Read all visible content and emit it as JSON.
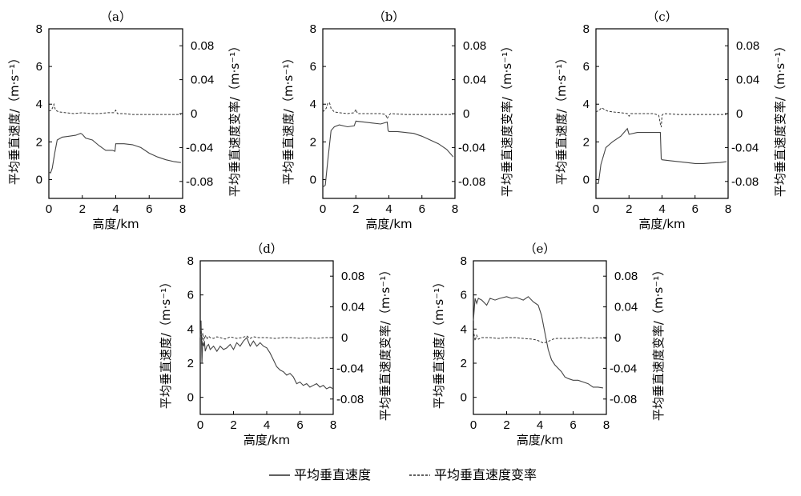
{
  "chart_data": [
    {
      "type": "line",
      "panel": "a",
      "title": "（a）",
      "xlabel": "高度/km",
      "ylabel_left": "平均垂直速度/（m·s⁻¹）",
      "ylabel_right": "平均垂直速度变率/（m·s⁻¹）",
      "xlim": [
        0,
        8
      ],
      "ylim_left": [
        -1,
        8
      ],
      "ylim_right": [
        -0.1,
        0.1
      ],
      "xticks": [
        "0",
        "2",
        "4",
        "6",
        "8"
      ],
      "yticks_left": [
        "0",
        "2",
        "4",
        "6",
        "8"
      ],
      "yticks_right": [
        "-0.08",
        "-0.04",
        "0",
        "0.04",
        "0.08"
      ],
      "series": [
        {
          "name": "平均垂直速度",
          "style": "solid",
          "x": [
            0,
            0.1,
            0.2,
            0.35,
            0.5,
            0.8,
            1.2,
            1.6,
            1.9,
            2.0,
            2.2,
            2.6,
            3.0,
            3.4,
            3.8,
            3.95,
            4.0,
            4.5,
            5.0,
            5.5,
            6.0,
            6.5,
            7.0,
            7.5,
            7.9
          ],
          "y": [
            0.4,
            0.35,
            0.6,
            1.4,
            2.1,
            2.25,
            2.3,
            2.35,
            2.45,
            2.4,
            2.2,
            2.1,
            1.8,
            1.55,
            1.55,
            1.5,
            1.9,
            1.9,
            1.85,
            1.7,
            1.4,
            1.2,
            1.05,
            0.95,
            0.9
          ]
        },
        {
          "name": "平均垂直速度变率",
          "style": "dashed",
          "x": [
            0,
            0.15,
            0.25,
            0.3,
            0.4,
            0.6,
            1.0,
            1.5,
            2.0,
            2.5,
            3.0,
            3.5,
            3.9,
            4.0,
            4.1,
            4.5,
            5.0,
            6.0,
            7.0,
            7.9
          ],
          "y": [
            0.003,
            0.004,
            0.008,
            0.011,
            0.004,
            0.002,
            0.001,
            0.0,
            0.001,
            0.0,
            0.0,
            0.001,
            0.001,
            0.004,
            0.0,
            0.0,
            -0.001,
            -0.001,
            -0.001,
            -0.001
          ]
        }
      ]
    },
    {
      "type": "line",
      "panel": "b",
      "title": "（b）",
      "xlabel": "高度/km",
      "ylabel_left": "平均垂直速度/（m·s⁻¹）",
      "ylabel_right": "平均垂直速度变率/（m·s⁻¹）",
      "xlim": [
        0,
        8
      ],
      "ylim_left": [
        -1,
        8
      ],
      "ylim_right": [
        -0.1,
        0.1
      ],
      "xticks": [
        "0",
        "2",
        "4",
        "6",
        "8"
      ],
      "yticks_left": [
        "0",
        "2",
        "4",
        "6",
        "8"
      ],
      "yticks_right": [
        "-0.08",
        "-0.04",
        "0",
        "0.04",
        "0.08"
      ],
      "series": [
        {
          "name": "平均垂直速度",
          "style": "solid",
          "x": [
            0,
            0.15,
            0.3,
            0.5,
            0.7,
            1.0,
            1.5,
            1.9,
            2.0,
            2.5,
            3.0,
            3.5,
            3.9,
            3.95,
            4.0,
            4.5,
            5.0,
            5.5,
            6.0,
            6.5,
            7.0,
            7.5,
            7.9
          ],
          "y": [
            -0.4,
            -0.3,
            1.0,
            2.6,
            2.8,
            2.9,
            2.8,
            2.85,
            3.1,
            3.05,
            3.0,
            2.95,
            3.05,
            2.6,
            2.55,
            2.55,
            2.5,
            2.45,
            2.3,
            2.1,
            1.9,
            1.6,
            1.2
          ]
        },
        {
          "name": "平均垂直速度变率",
          "style": "dashed",
          "x": [
            0,
            0.2,
            0.3,
            0.4,
            0.5,
            0.7,
            1.0,
            1.5,
            1.9,
            2.0,
            2.1,
            2.5,
            3.0,
            3.5,
            3.8,
            3.9,
            4.0,
            4.1,
            5.0,
            6.0,
            7.0,
            7.9
          ],
          "y": [
            0.002,
            0.006,
            0.012,
            0.013,
            0.006,
            0.002,
            0.001,
            0.0,
            0.001,
            0.005,
            0.0,
            0.0,
            0.0,
            0.0,
            -0.001,
            -0.006,
            -0.002,
            0.0,
            -0.001,
            -0.001,
            -0.001,
            -0.001
          ]
        }
      ]
    },
    {
      "type": "line",
      "panel": "c",
      "title": "（c）",
      "xlabel": "高度/km",
      "ylabel_left": "平均垂直速度/（m·s⁻¹）",
      "ylabel_right": "平均垂直速度变率/（m·s⁻¹）",
      "xlim": [
        0,
        8
      ],
      "ylim_left": [
        -1,
        8
      ],
      "ylim_right": [
        -0.1,
        0.1
      ],
      "xticks": [
        "0",
        "2",
        "4",
        "6",
        "8"
      ],
      "yticks_left": [
        "0",
        "2",
        "4",
        "6",
        "8"
      ],
      "yticks_right": [
        "-0.08",
        "-0.04",
        "0",
        "0.04",
        "0.08"
      ],
      "series": [
        {
          "name": "平均垂直速度",
          "style": "solid",
          "x": [
            0,
            0.15,
            0.3,
            0.6,
            1.0,
            1.5,
            1.9,
            2.0,
            2.5,
            3.0,
            3.5,
            3.9,
            3.95,
            4.0,
            4.5,
            5.0,
            5.5,
            6.0,
            6.5,
            7.0,
            7.5,
            7.9
          ],
          "y": [
            -0.2,
            -0.2,
            0.8,
            1.7,
            2.0,
            2.3,
            2.7,
            2.4,
            2.5,
            2.5,
            2.5,
            2.5,
            1.1,
            1.05,
            1.0,
            0.95,
            0.9,
            0.85,
            0.85,
            0.88,
            0.9,
            0.95
          ]
        },
        {
          "name": "平均垂直速度变率",
          "style": "dashed",
          "x": [
            0,
            0.2,
            0.35,
            0.5,
            0.7,
            1.0,
            1.5,
            1.9,
            2.0,
            2.1,
            2.5,
            3.0,
            3.5,
            3.8,
            3.9,
            3.95,
            4.0,
            4.1,
            5.0,
            6.0,
            7.0,
            7.9
          ],
          "y": [
            0.002,
            0.004,
            0.007,
            0.005,
            0.003,
            0.002,
            0.001,
            0.0,
            -0.003,
            0.0,
            0.0,
            0.0,
            0.0,
            -0.002,
            -0.012,
            -0.016,
            -0.002,
            0.0,
            -0.001,
            -0.001,
            -0.001,
            -0.001
          ]
        }
      ]
    },
    {
      "type": "line",
      "panel": "d",
      "title": "（d）",
      "xlabel": "高度/km",
      "ylabel_left": "平均垂直速度/（m·s⁻¹）",
      "ylabel_right": "平均垂直速度变率/（m·s⁻¹）",
      "xlim": [
        0,
        8
      ],
      "ylim_left": [
        -1,
        8
      ],
      "ylim_right": [
        -0.1,
        0.1
      ],
      "xticks": [
        "0",
        "2",
        "4",
        "6",
        "8"
      ],
      "yticks_left": [
        "0",
        "2",
        "4",
        "6",
        "8"
      ],
      "yticks_right": [
        "-0.08",
        "-0.04",
        "0",
        "0.04",
        "0.08"
      ],
      "series": [
        {
          "name": "平均垂直速度",
          "style": "solid",
          "x": [
            0,
            0.05,
            0.1,
            0.15,
            0.2,
            0.25,
            0.3,
            0.4,
            0.5,
            0.6,
            0.8,
            1.0,
            1.2,
            1.4,
            1.6,
            1.8,
            2.0,
            2.2,
            2.4,
            2.6,
            2.8,
            3.0,
            3.2,
            3.4,
            3.6,
            3.8,
            4.0,
            4.2,
            4.4,
            4.6,
            4.8,
            5.0,
            5.2,
            5.4,
            5.6,
            5.8,
            6.0,
            6.2,
            6.4,
            6.6,
            6.8,
            7.0,
            7.2,
            7.4,
            7.6,
            7.8,
            8.0
          ],
          "y": [
            3.5,
            4.5,
            2.0,
            3.2,
            3.0,
            3.3,
            2.7,
            3.0,
            3.1,
            2.8,
            3.0,
            2.7,
            3.0,
            2.8,
            2.9,
            3.1,
            2.8,
            3.2,
            3.0,
            3.3,
            3.5,
            3.0,
            3.3,
            3.0,
            3.2,
            3.0,
            2.9,
            2.6,
            2.2,
            1.8,
            1.6,
            1.5,
            1.3,
            1.4,
            1.2,
            0.8,
            0.9,
            0.7,
            0.8,
            0.6,
            0.7,
            0.8,
            0.6,
            0.7,
            0.5,
            0.6,
            0.5
          ]
        },
        {
          "name": "平均垂直速度变率",
          "style": "dashed",
          "x": [
            0,
            0.05,
            0.1,
            0.15,
            0.2,
            0.3,
            0.4,
            0.5,
            0.6,
            0.8,
            1.0,
            1.2,
            1.5,
            1.8,
            2.0,
            2.2,
            2.5,
            2.8,
            3.0,
            3.2,
            3.5,
            4.0,
            4.5,
            5.0,
            5.5,
            6.0,
            6.5,
            7.0,
            7.5,
            8.0
          ],
          "y": [
            0.0,
            0.012,
            -0.01,
            0.006,
            -0.004,
            0.003,
            -0.002,
            0.002,
            0.0,
            -0.001,
            0.001,
            0.0,
            -0.002,
            0.001,
            0.0,
            -0.001,
            0.0,
            0.002,
            -0.001,
            0.001,
            0.0,
            0.0,
            -0.001,
            0.0,
            0.0,
            -0.001,
            0.0,
            -0.001,
            0.0,
            0.0
          ]
        }
      ]
    },
    {
      "type": "line",
      "panel": "e",
      "title": "（e）",
      "xlabel": "高度/km",
      "ylabel_left": "平均垂直速度/（m·s⁻¹）",
      "ylabel_right": "平均垂直速度变率/（m·s⁻¹）",
      "xlim": [
        0,
        8
      ],
      "ylim_left": [
        -1,
        8
      ],
      "ylim_right": [
        -0.1,
        0.1
      ],
      "xticks": [
        "0",
        "2",
        "4",
        "6",
        "8"
      ],
      "yticks_left": [
        "0",
        "2",
        "4",
        "6",
        "8"
      ],
      "yticks_right": [
        "-0.08",
        "-0.04",
        "0",
        "0.04",
        "0.08"
      ],
      "series": [
        {
          "name": "平均垂直速度",
          "style": "solid",
          "x": [
            0,
            0.1,
            0.2,
            0.3,
            0.5,
            0.8,
            1.0,
            1.3,
            1.6,
            2.0,
            2.3,
            2.6,
            3.0,
            3.3,
            3.6,
            3.9,
            4.1,
            4.3,
            4.5,
            4.7,
            4.9,
            5.1,
            5.3,
            5.5,
            5.7,
            6.0,
            6.3,
            6.6,
            6.9,
            7.2,
            7.5,
            7.8
          ],
          "y": [
            4.5,
            5.8,
            5.5,
            5.8,
            5.7,
            5.4,
            5.8,
            5.7,
            5.8,
            5.9,
            5.8,
            5.85,
            5.7,
            5.9,
            5.6,
            5.4,
            4.8,
            3.8,
            2.8,
            2.2,
            1.9,
            1.7,
            1.5,
            1.2,
            1.1,
            1.0,
            1.0,
            0.9,
            0.8,
            0.6,
            0.6,
            0.55
          ]
        },
        {
          "name": "平均垂直速度变率",
          "style": "dashed",
          "x": [
            0,
            0.1,
            0.2,
            0.3,
            0.5,
            0.8,
            1.0,
            1.5,
            2.0,
            2.5,
            3.0,
            3.5,
            3.8,
            4.0,
            4.2,
            4.4,
            4.6,
            4.8,
            5.0,
            5.5,
            6.0,
            6.5,
            7.0,
            7.5,
            8.0
          ],
          "y": [
            0.01,
            -0.004,
            0.003,
            -0.002,
            0.0,
            0.0,
            0.0,
            -0.001,
            0.0,
            0.0,
            -0.001,
            -0.002,
            -0.003,
            -0.005,
            -0.007,
            -0.006,
            -0.004,
            -0.002,
            -0.001,
            -0.001,
            -0.001,
            0.0,
            -0.001,
            0.0,
            -0.001
          ]
        }
      ]
    }
  ],
  "legend": {
    "solid_label": "平均垂直速度",
    "dashed_label": "平均垂直速度变率"
  }
}
